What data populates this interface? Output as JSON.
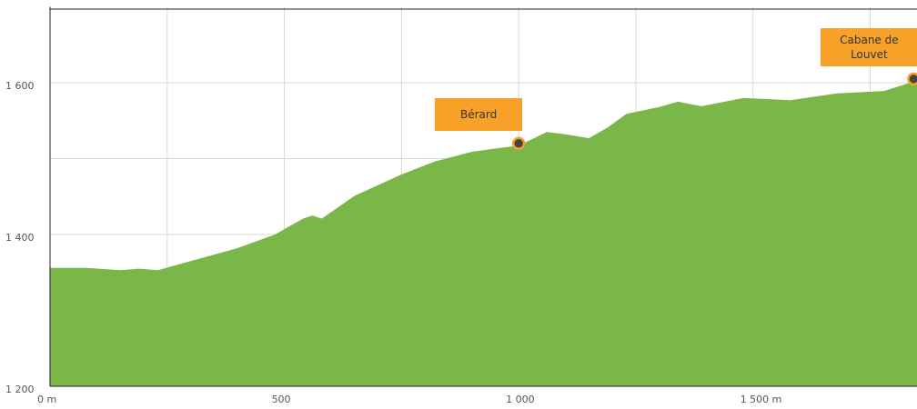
{
  "chart_data": {
    "type": "area",
    "x": [
      0,
      80,
      150,
      190,
      230,
      300,
      400,
      480,
      540,
      560,
      580,
      650,
      750,
      820,
      900,
      960,
      1000,
      1020,
      1060,
      1100,
      1150,
      1190,
      1230,
      1300,
      1340,
      1390,
      1480,
      1580,
      1680,
      1780,
      1850
    ],
    "values": [
      1356,
      1356,
      1353,
      1355,
      1353,
      1365,
      1382,
      1400,
      1421,
      1425,
      1421,
      1451,
      1479,
      1496,
      1509,
      1514,
      1517,
      1523,
      1535,
      1532,
      1527,
      1541,
      1559,
      1568,
      1575,
      1569,
      1580,
      1577,
      1586,
      1589,
      1603
    ],
    "color": "#7ab648",
    "xlim": [
      0,
      1850
    ],
    "ylim": [
      1200,
      1700
    ],
    "xticks": [
      {
        "value": 0,
        "label": "0 m"
      },
      500,
      {
        "value": 1000,
        "label": "1 000"
      },
      {
        "value": 1500,
        "label": "1 500 m"
      }
    ],
    "yticks": [
      {
        "value": 1200,
        "label": "1 200"
      },
      {
        "value": 1400,
        "label": "1 400"
      },
      {
        "value": 1600,
        "label": "1 600"
      }
    ],
    "xminor": [
      250,
      750,
      1250,
      1750
    ],
    "yminor": [
      1300,
      1500
    ],
    "grid": true,
    "annotations": [
      {
        "label": "Bérard",
        "x": 1000,
        "y": 1520
      },
      {
        "label": "Cabane de Louvet",
        "x": 1843,
        "y": 1605
      }
    ],
    "annotation_color": "#f7a128"
  }
}
